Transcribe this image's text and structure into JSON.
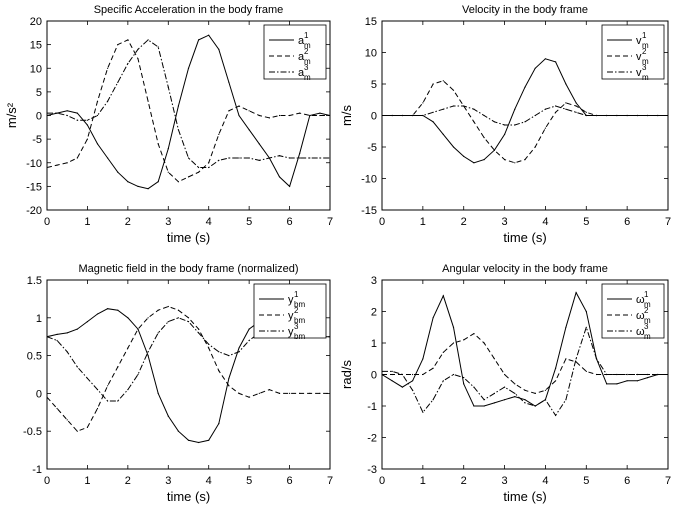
{
  "chart_data": [
    {
      "type": "line",
      "title": "Specific Acceleration in the body frame",
      "xlabel": "time (s)",
      "ylabel": "m/s²",
      "xlim": [
        0,
        7
      ],
      "ylim": [
        -20,
        20
      ],
      "xticks": [
        0,
        1,
        2,
        3,
        4,
        5,
        6,
        7
      ],
      "yticks": [
        -20,
        -15,
        -10,
        -5,
        0,
        5,
        10,
        15,
        20
      ],
      "x": [
        0,
        0.25,
        0.5,
        0.75,
        1.0,
        1.25,
        1.5,
        1.75,
        2.0,
        2.25,
        2.5,
        2.75,
        3.0,
        3.25,
        3.5,
        3.75,
        4.0,
        4.25,
        4.5,
        4.75,
        5.0,
        5.25,
        5.5,
        5.75,
        6.0,
        6.25,
        6.5,
        6.75,
        7.0
      ],
      "legend": "top-right",
      "series": [
        {
          "name": "a",
          "sup": "1",
          "sub": "m",
          "style": "solid",
          "values": [
            0,
            0.5,
            1,
            0.5,
            -2,
            -6,
            -9,
            -12,
            -14,
            -15,
            -15.5,
            -14,
            -7,
            2,
            10,
            16,
            17,
            14,
            7,
            0,
            -3,
            -6,
            -9,
            -13,
            -15,
            -8,
            0,
            0.5,
            0
          ]
        },
        {
          "name": "a",
          "sup": "2",
          "sub": "m",
          "style": "dashed",
          "values": [
            -11,
            -10.5,
            -10,
            -9,
            -5,
            3,
            10,
            15,
            16,
            12,
            3,
            -6,
            -12,
            -14,
            -13,
            -12,
            -10,
            -4,
            1,
            2,
            1,
            0,
            -0.5,
            0,
            0,
            0.5,
            0,
            0,
            0
          ]
        },
        {
          "name": "a",
          "sup": "3",
          "sub": "m",
          "style": "dashdot",
          "values": [
            0.5,
            0.5,
            0,
            -1,
            -1,
            0,
            3,
            7,
            11,
            14,
            16,
            14.5,
            6,
            -3,
            -9,
            -11,
            -11,
            -9.5,
            -9,
            -9,
            -9,
            -9.5,
            -9,
            -8.5,
            -9,
            -9,
            -9,
            -9,
            -9
          ]
        }
      ]
    },
    {
      "type": "line",
      "title": "Velocity in the body frame",
      "xlabel": "time (s)",
      "ylabel": "m/s",
      "xlim": [
        0,
        7
      ],
      "ylim": [
        -15,
        15
      ],
      "xticks": [
        0,
        1,
        2,
        3,
        4,
        5,
        6,
        7
      ],
      "yticks": [
        -15,
        -10,
        -5,
        0,
        5,
        10,
        15
      ],
      "x": [
        0,
        0.25,
        0.5,
        0.75,
        1.0,
        1.25,
        1.5,
        1.75,
        2.0,
        2.25,
        2.5,
        2.75,
        3.0,
        3.25,
        3.5,
        3.75,
        4.0,
        4.25,
        4.5,
        4.75,
        5.0,
        5.25,
        5.5,
        5.75,
        6.0,
        6.25,
        6.5,
        6.75,
        7.0
      ],
      "legend": "top-right",
      "series": [
        {
          "name": "v",
          "sup": "1",
          "sub": "m",
          "style": "solid",
          "values": [
            0,
            0,
            0,
            0,
            0,
            -1,
            -3,
            -5,
            -6.5,
            -7.5,
            -7,
            -5.5,
            -3,
            1,
            4.5,
            7.5,
            9,
            8.5,
            5,
            2,
            0,
            0,
            0,
            0,
            0,
            0,
            0,
            0,
            0
          ]
        },
        {
          "name": "v",
          "sup": "2",
          "sub": "m",
          "style": "dashed",
          "values": [
            0,
            0,
            0,
            0,
            2,
            5,
            5.5,
            4,
            1.5,
            -1,
            -3.5,
            -5.5,
            -7,
            -7.5,
            -7,
            -5,
            -2,
            0.5,
            2,
            1.5,
            0.5,
            0,
            0,
            0,
            0,
            0,
            0,
            0,
            0
          ]
        },
        {
          "name": "v",
          "sup": "3",
          "sub": "m",
          "style": "dashdot",
          "values": [
            0,
            0,
            0,
            0,
            0,
            0.5,
            1,
            1.5,
            1.5,
            1,
            0,
            -1,
            -1.5,
            -1.5,
            -1,
            0,
            1,
            1.5,
            1,
            0.5,
            0,
            0,
            0,
            0,
            0,
            0,
            0,
            0,
            0
          ]
        }
      ]
    },
    {
      "type": "line",
      "title": "Magnetic field in the body frame (normalized)",
      "xlabel": "time (s)",
      "ylabel": "",
      "xlim": [
        0,
        7
      ],
      "ylim": [
        -1,
        1.5
      ],
      "xticks": [
        0,
        1,
        2,
        3,
        4,
        5,
        6,
        7
      ],
      "yticks": [
        -1,
        -0.5,
        0,
        0.5,
        1,
        1.5
      ],
      "x": [
        0,
        0.25,
        0.5,
        0.75,
        1.0,
        1.25,
        1.5,
        1.75,
        2.0,
        2.25,
        2.5,
        2.75,
        3.0,
        3.25,
        3.5,
        3.75,
        4.0,
        4.25,
        4.5,
        4.75,
        5.0,
        5.25,
        5.5,
        5.75,
        6.0,
        6.25,
        6.5,
        6.75,
        7.0
      ],
      "legend": "top-right",
      "series": [
        {
          "name": "y",
          "sup": "1",
          "sub": "bm",
          "style": "solid",
          "values": [
            0.75,
            0.78,
            0.8,
            0.85,
            0.95,
            1.05,
            1.12,
            1.1,
            1.0,
            0.85,
            0.5,
            0.0,
            -0.3,
            -0.5,
            -0.62,
            -0.65,
            -0.62,
            -0.4,
            0.2,
            0.6,
            0.85,
            0.95,
            0.95,
            0.85,
            0.8,
            0.75,
            0.75,
            0.75,
            0.75
          ]
        },
        {
          "name": "y",
          "sup": "2",
          "sub": "bm",
          "style": "dashed",
          "values": [
            -0.05,
            -0.2,
            -0.35,
            -0.5,
            -0.45,
            -0.2,
            0.1,
            0.35,
            0.6,
            0.85,
            1.0,
            1.1,
            1.15,
            1.1,
            1.0,
            0.85,
            0.6,
            0.3,
            0.1,
            0.0,
            -0.05,
            0.0,
            0.05,
            0.0,
            0.0,
            0.0,
            0.0,
            0.0,
            0.0
          ]
        },
        {
          "name": "y",
          "sup": "3",
          "sub": "bm",
          "style": "dashdot",
          "values": [
            0.75,
            0.7,
            0.55,
            0.35,
            0.2,
            0.05,
            -0.1,
            -0.1,
            0.05,
            0.25,
            0.55,
            0.8,
            0.95,
            1.0,
            0.95,
            0.8,
            0.65,
            0.55,
            0.5,
            0.55,
            0.7,
            0.8,
            0.8,
            0.75,
            0.8,
            0.78,
            0.75,
            0.75,
            0.75
          ]
        }
      ]
    },
    {
      "type": "line",
      "title": "Angular velocity in the body frame",
      "xlabel": "time (s)",
      "ylabel": "rad/s",
      "xlim": [
        0,
        7
      ],
      "ylim": [
        -3,
        3
      ],
      "xticks": [
        0,
        1,
        2,
        3,
        4,
        5,
        6,
        7
      ],
      "yticks": [
        -3,
        -2,
        -1,
        0,
        1,
        2,
        3
      ],
      "x": [
        0,
        0.25,
        0.5,
        0.75,
        1.0,
        1.25,
        1.5,
        1.75,
        2.0,
        2.25,
        2.5,
        2.75,
        3.0,
        3.25,
        3.5,
        3.75,
        4.0,
        4.25,
        4.5,
        4.75,
        5.0,
        5.25,
        5.5,
        5.75,
        6.0,
        6.25,
        6.5,
        6.75,
        7.0
      ],
      "legend": "top-right",
      "series": [
        {
          "name": "ω",
          "sup": "1",
          "sub": "m",
          "style": "solid",
          "values": [
            0,
            -0.2,
            -0.4,
            -0.2,
            0.5,
            1.8,
            2.5,
            1.5,
            -0.3,
            -1.0,
            -1.0,
            -0.9,
            -0.8,
            -0.7,
            -0.8,
            -1.0,
            -0.8,
            0.2,
            1.5,
            2.6,
            2.0,
            0.5,
            -0.3,
            -0.3,
            -0.2,
            -0.2,
            -0.1,
            0,
            0
          ]
        },
        {
          "name": "ω",
          "sup": "2",
          "sub": "m",
          "style": "dashed",
          "values": [
            0,
            0,
            0,
            0,
            0,
            0.2,
            0.7,
            1.0,
            1.1,
            1.3,
            1.0,
            0.5,
            0,
            -0.3,
            -0.5,
            -0.6,
            -0.5,
            -0.2,
            0.5,
            0.4,
            0.1,
            0,
            0,
            0,
            0,
            0,
            0,
            0,
            0
          ]
        },
        {
          "name": "ω",
          "sup": "3",
          "sub": "m",
          "style": "dashdot",
          "values": [
            0.1,
            0.1,
            0,
            -0.5,
            -1.2,
            -0.8,
            -0.2,
            0,
            -0.1,
            -0.4,
            -0.8,
            -0.6,
            -0.4,
            -0.6,
            -0.9,
            -1.0,
            -0.8,
            -1.3,
            -0.8,
            0.5,
            1.5,
            0.5,
            0,
            0,
            0,
            0,
            0,
            0,
            0
          ]
        }
      ]
    }
  ]
}
